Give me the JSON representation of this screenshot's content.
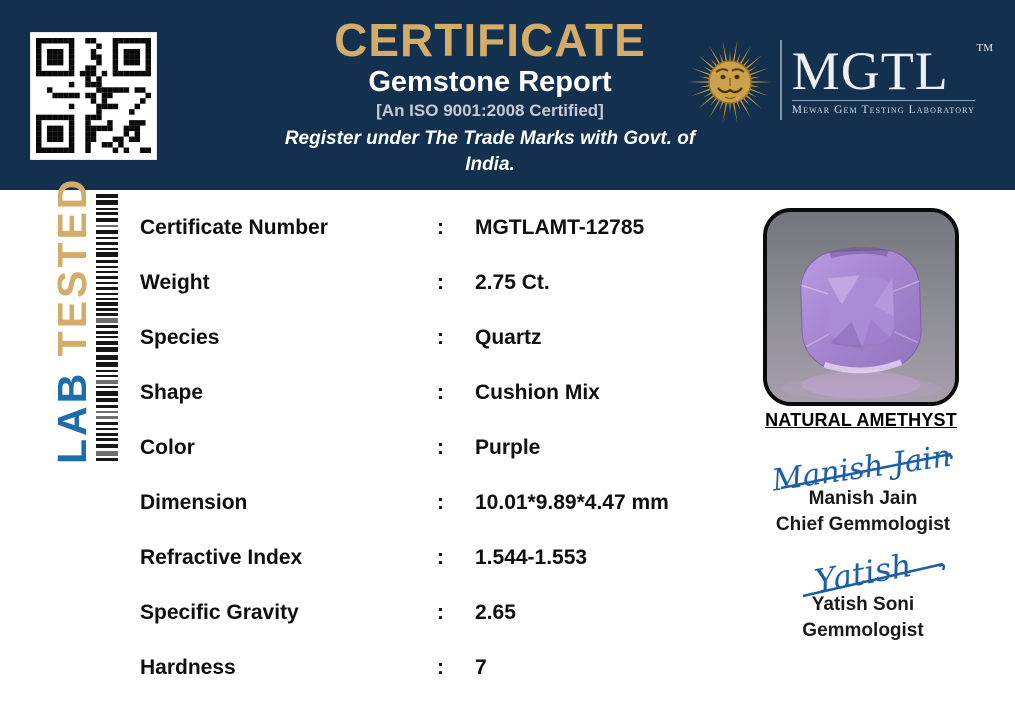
{
  "header": {
    "title": "CERTIFICATE",
    "subtitle": "Gemstone Report",
    "iso_line": "[An ISO 9001:2008 Certified]",
    "register_line": "Register under The Trade Marks with Govt. of India.",
    "colors": {
      "background": "#14304F",
      "title_gold": "#D2AC68"
    }
  },
  "logo": {
    "name": "MGTL",
    "trademark": "TM",
    "tagline": "Mewar Gem Testing Laboratory",
    "emblem": "sun-face-emblem"
  },
  "side_strip": {
    "lab": "LAB",
    "tested": " TESTED",
    "lab_color": "#1E6CA8",
    "tested_color": "#D2AC68"
  },
  "details": {
    "rows": [
      {
        "label": "Certificate Number",
        "separator": ":",
        "value": "MGTLAMT-12785"
      },
      {
        "label": "Weight",
        "separator": ":",
        "value": "2.75 Ct."
      },
      {
        "label": "Species",
        "separator": ":",
        "value": "Quartz"
      },
      {
        "label": "Shape",
        "separator": ":",
        "value": "Cushion Mix"
      },
      {
        "label": "Color",
        "separator": ":",
        "value": "Purple"
      },
      {
        "label": "Dimension",
        "separator": ":",
        "value": "10.01*9.89*4.47 mm"
      },
      {
        "label": "Refractive Index",
        "separator": ":",
        "value": "1.544-1.553"
      },
      {
        "label": "Specific Gravity",
        "separator": ":",
        "value": "2.65"
      },
      {
        "label": "Hardness",
        "separator": ":",
        "value": "7"
      }
    ]
  },
  "specimen": {
    "caption": "NATURAL AMETHYST",
    "gem_accent_color": "#A583CE"
  },
  "signatures": [
    {
      "script": "Manish Jain",
      "name": "Manish Jain",
      "title": "Chief Gemmologist",
      "ink_color": "#1D5FA7"
    },
    {
      "script": "Yatish",
      "name": "Yatish Soni",
      "title": "Gemmologist",
      "ink_color": "#1D5FA7"
    }
  ]
}
